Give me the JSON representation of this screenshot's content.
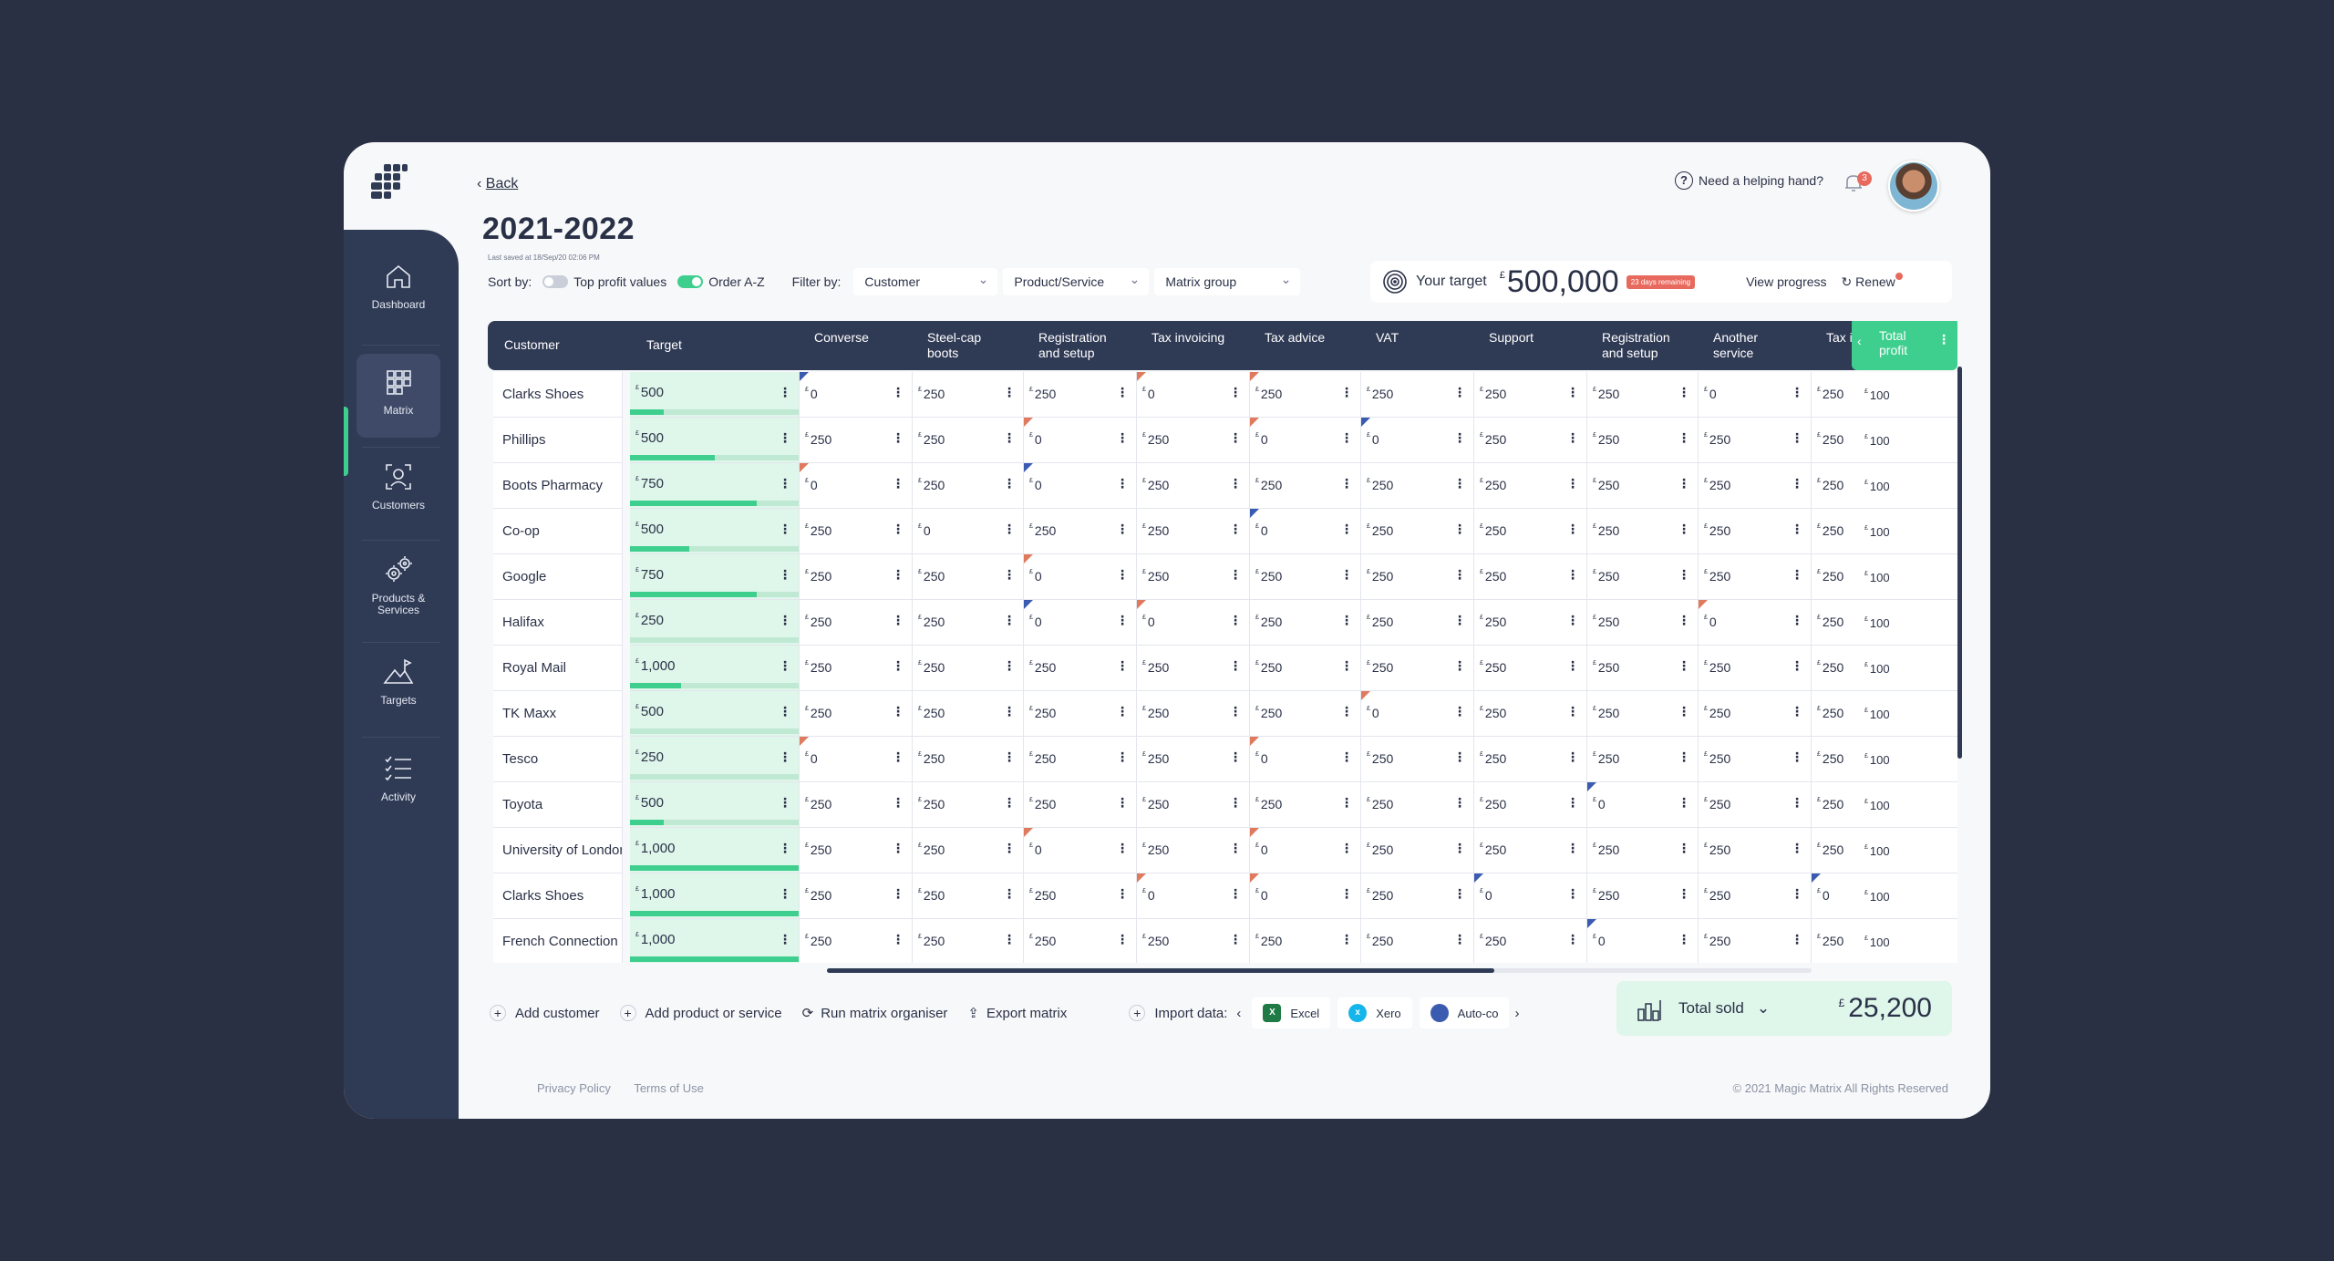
{
  "nav": {
    "items": [
      {
        "label": "Dashboard",
        "icon": "home-icon"
      },
      {
        "label": "Matrix",
        "icon": "grid-icon"
      },
      {
        "label": "Customers",
        "icon": "user-frame-icon"
      },
      {
        "label": "Products &\nServices",
        "icon": "gears-icon"
      },
      {
        "label": "Targets",
        "icon": "mountain-flag-icon"
      },
      {
        "label": "Activity",
        "icon": "checklist-icon"
      }
    ],
    "active_index": 1
  },
  "header": {
    "back_label": "Back",
    "title": "2021-2022",
    "last_saved": "Last saved at 18/Sep/20 02:06 PM",
    "help_label": "Need a helping hand?",
    "notification_count": "3"
  },
  "controls": {
    "sort_label": "Sort by:",
    "top_profit_label": "Top profit values",
    "top_profit_on": false,
    "order_az_label": "Order A-Z",
    "order_az_on": true,
    "filter_label": "Filter by:",
    "filter_customer": "Customer",
    "filter_product": "Product/Service",
    "filter_group": "Matrix group"
  },
  "target": {
    "label": "Your target",
    "currency": "£",
    "amount": "500,000",
    "days_remaining": "23 days remaining",
    "view_progress": "View progress",
    "renew": "Renew"
  },
  "table": {
    "columns": [
      "Customer",
      "Target",
      "Converse",
      "Steel-cap\nboots",
      "Registration\nand setup",
      "Tax invoicing",
      "Tax advice",
      "VAT",
      "Support",
      "Registration\nand setup",
      "Another\nservice",
      "Tax invo"
    ],
    "total_column": "Total\nprofit",
    "currency": "£",
    "rows": [
      {
        "customer": "Clarks Shoes",
        "target": "500",
        "progress": 0.2,
        "values": [
          "0",
          "250",
          "250",
          "0",
          "250",
          "250",
          "250",
          "250",
          "0",
          "250"
        ],
        "flags": [
          "blue",
          "",
          "",
          "red",
          "red",
          "",
          "",
          "",
          "",
          ""
        ],
        "total": "100"
      },
      {
        "customer": "Phillips",
        "target": "500",
        "progress": 0.5,
        "values": [
          "250",
          "250",
          "0",
          "250",
          "0",
          "0",
          "250",
          "250",
          "250",
          "250"
        ],
        "flags": [
          "",
          "",
          "red",
          "",
          "red",
          "blue",
          "",
          "",
          "",
          ""
        ],
        "total": "100"
      },
      {
        "customer": "Boots Pharmacy",
        "target": "750",
        "progress": 0.75,
        "values": [
          "0",
          "250",
          "0",
          "250",
          "250",
          "250",
          "250",
          "250",
          "250",
          "250"
        ],
        "flags": [
          "red",
          "",
          "blue",
          "",
          "",
          "",
          "",
          "",
          "",
          ""
        ],
        "total": "100"
      },
      {
        "customer": "Co-op",
        "target": "500",
        "progress": 0.35,
        "values": [
          "250",
          "0",
          "250",
          "250",
          "0",
          "250",
          "250",
          "250",
          "250",
          "250"
        ],
        "flags": [
          "",
          "",
          "",
          "",
          "blue",
          "",
          "",
          "",
          "",
          ""
        ],
        "total": "100"
      },
      {
        "customer": "Google",
        "target": "750",
        "progress": 0.75,
        "values": [
          "250",
          "250",
          "0",
          "250",
          "250",
          "250",
          "250",
          "250",
          "250",
          "250"
        ],
        "flags": [
          "",
          "",
          "red",
          "",
          "",
          "",
          "",
          "",
          "",
          ""
        ],
        "total": "100"
      },
      {
        "customer": "Halifax",
        "target": "250",
        "progress": 0.0,
        "values": [
          "250",
          "250",
          "0",
          "0",
          "250",
          "250",
          "250",
          "250",
          "0",
          "250"
        ],
        "flags": [
          "",
          "",
          "blue",
          "red",
          "",
          "",
          "",
          "",
          "red",
          ""
        ],
        "total": "100"
      },
      {
        "customer": "Royal Mail",
        "target": "1,000",
        "progress": 0.3,
        "values": [
          "250",
          "250",
          "250",
          "250",
          "250",
          "250",
          "250",
          "250",
          "250",
          "250"
        ],
        "flags": [
          "",
          "",
          "",
          "",
          "",
          "",
          "",
          "",
          "",
          ""
        ],
        "total": "100"
      },
      {
        "customer": "TK Maxx",
        "target": "500",
        "progress": 0.0,
        "values": [
          "250",
          "250",
          "250",
          "250",
          "250",
          "0",
          "250",
          "250",
          "250",
          "250"
        ],
        "flags": [
          "",
          "",
          "",
          "",
          "",
          "red",
          "",
          "",
          "",
          ""
        ],
        "total": "100"
      },
      {
        "customer": "Tesco",
        "target": "250",
        "progress": 0.0,
        "values": [
          "0",
          "250",
          "250",
          "250",
          "0",
          "250",
          "250",
          "250",
          "250",
          "250"
        ],
        "flags": [
          "red",
          "",
          "",
          "",
          "red",
          "",
          "",
          "",
          "",
          ""
        ],
        "total": "100"
      },
      {
        "customer": "Toyota",
        "target": "500",
        "progress": 0.2,
        "values": [
          "250",
          "250",
          "250",
          "250",
          "250",
          "250",
          "250",
          "0",
          "250",
          "250"
        ],
        "flags": [
          "",
          "",
          "",
          "",
          "",
          "",
          "",
          "blue",
          "",
          ""
        ],
        "total": "100"
      },
      {
        "customer": "University of London",
        "target": "1,000",
        "progress": 1.0,
        "values": [
          "250",
          "250",
          "0",
          "250",
          "0",
          "250",
          "250",
          "250",
          "250",
          "250"
        ],
        "flags": [
          "",
          "",
          "red",
          "",
          "red",
          "",
          "",
          "",
          "",
          ""
        ],
        "total": "100"
      },
      {
        "customer": "Clarks Shoes",
        "target": "1,000",
        "progress": 1.0,
        "values": [
          "250",
          "250",
          "250",
          "0",
          "0",
          "250",
          "0",
          "250",
          "250",
          "0"
        ],
        "flags": [
          "",
          "",
          "",
          "red",
          "red",
          "",
          "blue",
          "",
          "",
          "blue"
        ],
        "total": "100"
      },
      {
        "customer": "French Connection",
        "target": "1,000",
        "progress": 1.0,
        "values": [
          "250",
          "250",
          "250",
          "250",
          "250",
          "250",
          "250",
          "0",
          "250",
          "250"
        ],
        "flags": [
          "",
          "",
          "",
          "",
          "",
          "",
          "",
          "blue",
          "",
          ""
        ],
        "total": "100"
      }
    ]
  },
  "actions": {
    "add_customer": "Add customer",
    "add_product": "Add product or service",
    "run_organiser": "Run matrix organiser",
    "export": "Export matrix",
    "import_label": "Import data:",
    "import_excel": "Excel",
    "import_xero": "Xero",
    "import_auto": "Auto-co",
    "total_sold_label": "Total sold",
    "total_sold_currency": "£",
    "total_sold_amount": "25,200"
  },
  "footer": {
    "privacy": "Privacy Policy",
    "terms": "Terms of Use",
    "copyright": "© 2021 Magic Matrix All Rights Reserved"
  },
  "colors": {
    "navy": "#2f3a55",
    "accent_green": "#3ecf8e",
    "light_green": "#dff6ea",
    "alert_red": "#e86a5e",
    "flag_blue": "#3a5bb0"
  }
}
